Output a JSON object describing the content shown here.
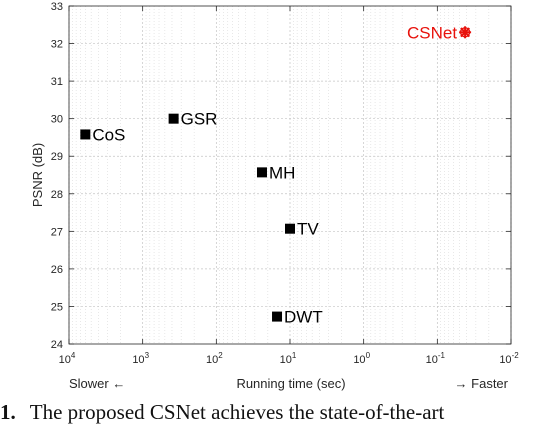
{
  "chart_data": {
    "type": "scatter",
    "xlabel": "Running time (sec)",
    "ylabel": "PSNR (dB)",
    "x_scale": "log",
    "x_reversed": true,
    "xlim": [
      10000,
      0.01
    ],
    "ylim": [
      24,
      33
    ],
    "x_ticks": [
      {
        "base": "10",
        "exp": "4",
        "value": 10000
      },
      {
        "base": "10",
        "exp": "3",
        "value": 1000
      },
      {
        "base": "10",
        "exp": "2",
        "value": 100
      },
      {
        "base": "10",
        "exp": "1",
        "value": 10
      },
      {
        "base": "10",
        "exp": "0",
        "value": 1
      },
      {
        "base": "10",
        "exp": "-1",
        "value": 0.1
      },
      {
        "base": "10",
        "exp": "-2",
        "value": 0.01
      }
    ],
    "y_ticks": [
      "24",
      "25",
      "26",
      "27",
      "28",
      "29",
      "30",
      "31",
      "32",
      "33"
    ],
    "grid": true,
    "annotations": {
      "slower": "Slower ←",
      "faster": "→ Faster"
    },
    "points": [
      {
        "label": "CoS",
        "x": 6000,
        "y": 29.58,
        "marker": "square",
        "color": "#000000"
      },
      {
        "label": "GSR",
        "x": 380,
        "y": 30.0,
        "marker": "square",
        "color": "#000000"
      },
      {
        "label": "MH",
        "x": 24,
        "y": 28.57,
        "marker": "square",
        "color": "#000000"
      },
      {
        "label": "TV",
        "x": 10,
        "y": 27.07,
        "marker": "square",
        "color": "#000000"
      },
      {
        "label": "DWT",
        "x": 15,
        "y": 24.73,
        "marker": "square",
        "color": "#000000"
      },
      {
        "label": "CSNet",
        "x": 0.042,
        "y": 32.3,
        "marker": "asterisk",
        "color": "#e8120c",
        "label_position": "left"
      }
    ]
  },
  "caption": {
    "number": "1.",
    "text": "The proposed CSNet achieves the state-of-the-art"
  }
}
